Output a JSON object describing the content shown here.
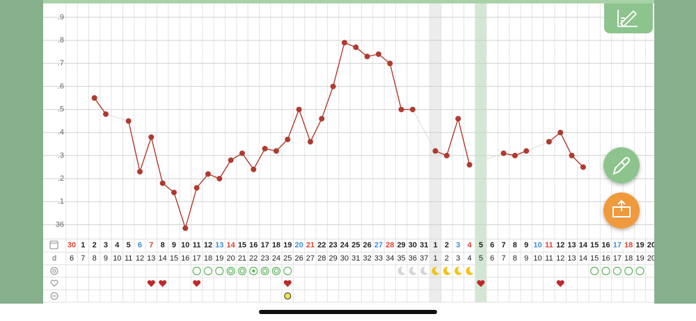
{
  "chart_data": {
    "type": "line",
    "categories": [
      "30",
      "1",
      "2",
      "3",
      "4",
      "5",
      "6",
      "7",
      "8",
      "9",
      "10",
      "11",
      "12",
      "13",
      "14",
      "15",
      "16",
      "17",
      "18",
      "19",
      "20",
      "21",
      "22",
      "23",
      "24",
      "25",
      "26",
      "27",
      "28",
      "29",
      "30",
      "31",
      "1",
      "2",
      "3",
      "4",
      "5",
      "6",
      "7",
      "8",
      "9",
      "10",
      "11",
      "12",
      "13",
      "14",
      "15",
      "16",
      "17",
      "18",
      "19",
      "20"
    ],
    "category_colors": [
      "#e0402f",
      "#222",
      "#222",
      "#222",
      "#222",
      "#222",
      "#3a8fd6",
      "#e0402f",
      "#222",
      "#222",
      "#222",
      "#222",
      "#222",
      "#3a8fd6",
      "#e0402f",
      "#222",
      "#222",
      "#222",
      "#222",
      "#222",
      "#3a8fd6",
      "#e0402f",
      "#222",
      "#222",
      "#222",
      "#222",
      "#222",
      "#3a8fd6",
      "#e0402f",
      "#222",
      "#222",
      "#222",
      "#222",
      "#222",
      "#3a8fd6",
      "#e0402f",
      "#222",
      "#222",
      "#222",
      "#222",
      "#222",
      "#3a8fd6",
      "#e0402f",
      "#222",
      "#222",
      "#222",
      "#222",
      "#222",
      "#3a8fd6",
      "#e0402f",
      "#222",
      "#222"
    ],
    "values": [
      null,
      null,
      36.55,
      36.48,
      null,
      36.45,
      36.23,
      36.38,
      36.18,
      36.14,
      35.985,
      36.16,
      36.22,
      36.2,
      36.28,
      36.31,
      36.24,
      36.33,
      36.32,
      36.37,
      36.5,
      36.36,
      36.46,
      36.6,
      36.79,
      36.77,
      36.73,
      36.74,
      36.7,
      36.5,
      36.5,
      null,
      36.32,
      36.3,
      36.46,
      36.26,
      null,
      null,
      36.31,
      36.3,
      36.32,
      null,
      36.36,
      36.4,
      36.3,
      36.25,
      null,
      null,
      null,
      null,
      null,
      null
    ],
    "color": "#b03a2e",
    "ylim": [
      35.95,
      36.96
    ],
    "yticks": [
      36,
      {
        "value": 36.1,
        "label": ".1"
      },
      {
        "value": 36.2,
        "label": ".2"
      },
      {
        "value": 36.3,
        "label": ".3"
      },
      {
        "value": 36.4,
        "label": ".4"
      },
      {
        "value": 36.5,
        "label": ".5"
      },
      {
        "value": 36.6,
        "label": ".6"
      },
      {
        "value": 36.7,
        "label": ".7"
      },
      {
        "value": 36.8,
        "label": ".8"
      },
      {
        "value": 36.9,
        "label": ".9"
      }
    ],
    "grid": true,
    "cycle_day_label": "d",
    "cycle_days": [
      6,
      7,
      8,
      9,
      10,
      11,
      12,
      13,
      14,
      15,
      16,
      17,
      18,
      19,
      20,
      21,
      22,
      23,
      24,
      25,
      26,
      27,
      28,
      29,
      30,
      31,
      32,
      33,
      34,
      35,
      36,
      37,
      1,
      2,
      3,
      4,
      5,
      6,
      7,
      8,
      9,
      10,
      11,
      12,
      13,
      14,
      15,
      16,
      17,
      18,
      19,
      20
    ],
    "highlight_columns": [
      {
        "index": 32,
        "color": "#ececec"
      },
      {
        "index": 36,
        "color": "#d3e8d3"
      }
    ],
    "symbol_rows": [
      [
        null,
        null,
        null,
        null,
        null,
        null,
        null,
        null,
        null,
        null,
        null,
        "circle",
        "circle",
        "circle",
        "double-circle",
        "double-circle",
        "star-circle",
        "double-circle",
        "double-circle",
        "circle",
        null,
        null,
        null,
        null,
        null,
        null,
        null,
        null,
        null,
        "moon-gray",
        "moon-gray",
        "moon-gray",
        "moon-yellow",
        "moon-yellow",
        "moon-yellow",
        "moon-yellow",
        null,
        null,
        null,
        null,
        null,
        null,
        null,
        null,
        null,
        null,
        "circle",
        "circle",
        "circle",
        "circle",
        "circle",
        null
      ],
      [
        null,
        null,
        null,
        null,
        null,
        null,
        null,
        "heart",
        "heart",
        null,
        null,
        "heart",
        null,
        null,
        null,
        null,
        null,
        null,
        null,
        "heart",
        null,
        null,
        null,
        null,
        null,
        null,
        null,
        null,
        null,
        null,
        null,
        null,
        null,
        null,
        null,
        null,
        "heart",
        null,
        null,
        null,
        null,
        null,
        null,
        "heart",
        null,
        null,
        null,
        null,
        null,
        null,
        null,
        null
      ],
      [
        null,
        null,
        null,
        null,
        null,
        null,
        null,
        null,
        null,
        null,
        null,
        null,
        null,
        null,
        null,
        null,
        null,
        null,
        null,
        "yellow-dot",
        null,
        null,
        null,
        null,
        null,
        null,
        null,
        null,
        null,
        null,
        null,
        null,
        null,
        null,
        null,
        null,
        null,
        null,
        null,
        null,
        null,
        null,
        null,
        null,
        null,
        null,
        null,
        null,
        null,
        null,
        null,
        null
      ]
    ]
  }
}
